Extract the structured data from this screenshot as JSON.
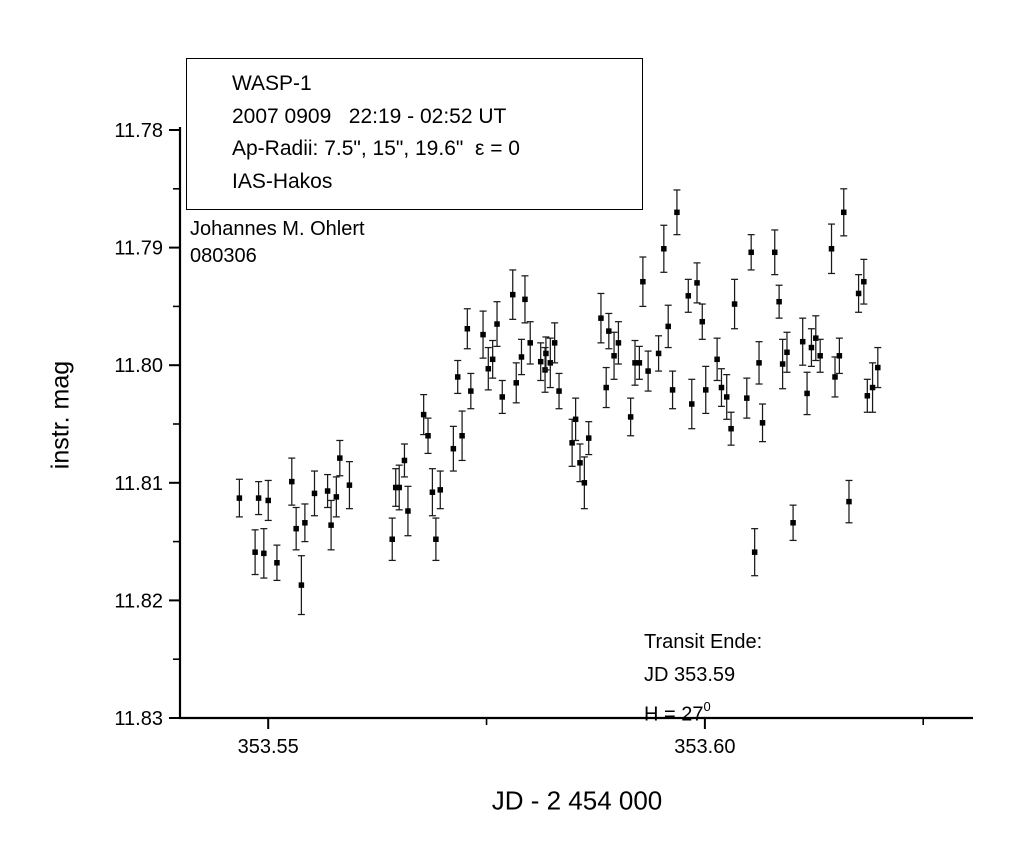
{
  "colors": {
    "foreground": "#000000",
    "background": "#ffffff",
    "error_bar": "#1a1a1a",
    "marker": "#000000"
  },
  "legend_box": {
    "lines": [
      "WASP-1",
      "2007 0909   22:19 - 02:52 UT",
      "Ap-Radii: 7.5\", 15\", 19.6\"  ε = 0",
      "IAS-Hakos"
    ]
  },
  "credit": {
    "line1": "Johannes M. Ohlert",
    "line2": "080306"
  },
  "annotation": {
    "line1": "Transit Ende:",
    "line2": "JD 353.59",
    "h_main": "H = 27",
    "h_sup": "0"
  },
  "chart_data": {
    "type": "scatter",
    "title": "",
    "xlabel": "JD - 2 454 000",
    "ylabel": "instr. mag",
    "xlim": [
      353.5399,
      353.6307
    ],
    "ylim": [
      11.78,
      11.83
    ],
    "y_axis_inverted_magnitude": true,
    "grid": false,
    "legend_position": "top-left-box",
    "marker_style": "filled-black-square-with-vertical-error-bars",
    "x_ticks_major": [
      {
        "value": 353.55,
        "label": "353.55"
      },
      {
        "value": 353.6,
        "label": "353.60"
      }
    ],
    "x_ticks_minor": [
      353.575,
      353.625
    ],
    "y_ticks_major": [
      {
        "value": 11.78,
        "label": "11.78"
      },
      {
        "value": 11.79,
        "label": "11.79"
      },
      {
        "value": 11.8,
        "label": "11.80"
      },
      {
        "value": 11.81,
        "label": "11.81"
      },
      {
        "value": 11.82,
        "label": "11.82"
      },
      {
        "value": 11.83,
        "label": "11.83"
      }
    ],
    "y_ticks_minor": [
      11.785,
      11.795,
      11.805,
      11.815,
      11.825
    ],
    "points_format": [
      "jd_minus_2454000",
      "instr_mag",
      "mag_error"
    ],
    "points": [
      [
        353.5467,
        11.8113,
        0.0016
      ],
      [
        353.5485,
        11.8159,
        0.0019
      ],
      [
        353.5489,
        11.8113,
        0.0014
      ],
      [
        353.5495,
        11.816,
        0.0021
      ],
      [
        353.55,
        11.8115,
        0.0017
      ],
      [
        353.551,
        11.8168,
        0.0015
      ],
      [
        353.5527,
        11.8099,
        0.002
      ],
      [
        353.5532,
        11.8139,
        0.0018
      ],
      [
        353.5538,
        11.8187,
        0.0025
      ],
      [
        353.5542,
        11.8134,
        0.0016
      ],
      [
        353.5553,
        11.8109,
        0.0019
      ],
      [
        353.5568,
        11.8107,
        0.0014
      ],
      [
        353.5572,
        11.8136,
        0.0021
      ],
      [
        353.5578,
        11.8112,
        0.0017
      ],
      [
        353.5582,
        11.8079,
        0.0015
      ],
      [
        353.5593,
        11.8102,
        0.002
      ],
      [
        353.5642,
        11.8148,
        0.0018
      ],
      [
        353.5646,
        11.8104,
        0.0016
      ],
      [
        353.565,
        11.8104,
        0.0019
      ],
      [
        353.5656,
        11.8081,
        0.0014
      ],
      [
        353.566,
        11.8124,
        0.0021
      ],
      [
        353.5678,
        11.8042,
        0.0017
      ],
      [
        353.5683,
        11.806,
        0.0015
      ],
      [
        353.5688,
        11.8108,
        0.002
      ],
      [
        353.5692,
        11.8148,
        0.0018
      ],
      [
        353.5697,
        11.8106,
        0.0016
      ],
      [
        353.5712,
        11.8071,
        0.0019
      ],
      [
        353.5717,
        11.801,
        0.0014
      ],
      [
        353.5722,
        11.806,
        0.0021
      ],
      [
        353.5728,
        11.7969,
        0.0017
      ],
      [
        353.5732,
        11.8022,
        0.0015
      ],
      [
        353.5746,
        11.7974,
        0.002
      ],
      [
        353.5752,
        11.8003,
        0.0018
      ],
      [
        353.5757,
        11.7995,
        0.0016
      ],
      [
        353.5762,
        11.7965,
        0.0019
      ],
      [
        353.5768,
        11.8027,
        0.0014
      ],
      [
        353.578,
        11.794,
        0.0021
      ],
      [
        353.5784,
        11.8015,
        0.0017
      ],
      [
        353.579,
        11.7993,
        0.0015
      ],
      [
        353.5794,
        11.7944,
        0.002
      ],
      [
        353.58,
        11.7981,
        0.0018
      ],
      [
        353.5812,
        11.7997,
        0.0016
      ],
      [
        353.5817,
        11.8004,
        0.0019
      ],
      [
        353.5818,
        11.799,
        0.0014
      ],
      [
        353.5823,
        11.7998,
        0.0021
      ],
      [
        353.5828,
        11.7981,
        0.0017
      ],
      [
        353.5833,
        11.8022,
        0.0015
      ],
      [
        353.5848,
        11.8066,
        0.002
      ],
      [
        353.5852,
        11.8046,
        0.0018
      ],
      [
        353.5857,
        11.8083,
        0.0016
      ],
      [
        353.5862,
        11.81,
        0.0022
      ],
      [
        353.5867,
        11.8062,
        0.0014
      ],
      [
        353.5881,
        11.796,
        0.0021
      ],
      [
        353.5887,
        11.8019,
        0.0017
      ],
      [
        353.589,
        11.7971,
        0.0015
      ],
      [
        353.5896,
        11.7992,
        0.002
      ],
      [
        353.5901,
        11.7981,
        0.0018
      ],
      [
        353.5915,
        11.8044,
        0.0016
      ],
      [
        353.592,
        11.7998,
        0.0019
      ],
      [
        353.5925,
        11.7998,
        0.0014
      ],
      [
        353.5929,
        11.7929,
        0.0021
      ],
      [
        353.5935,
        11.8005,
        0.0017
      ],
      [
        353.5947,
        11.799,
        0.0015
      ],
      [
        353.5953,
        11.7901,
        0.002
      ],
      [
        353.5958,
        11.7967,
        0.0018
      ],
      [
        353.5963,
        11.8021,
        0.0016
      ],
      [
        353.5968,
        11.787,
        0.0019
      ],
      [
        353.5981,
        11.7941,
        0.0014
      ],
      [
        353.5985,
        11.8033,
        0.0021
      ],
      [
        353.5991,
        11.793,
        0.0017
      ],
      [
        353.5997,
        11.7963,
        0.0015
      ],
      [
        353.6001,
        11.8021,
        0.002
      ],
      [
        353.6014,
        11.7995,
        0.0018
      ],
      [
        353.6019,
        11.8019,
        0.0016
      ],
      [
        353.6025,
        11.8027,
        0.0019
      ],
      [
        353.603,
        11.8054,
        0.0014
      ],
      [
        353.6034,
        11.7948,
        0.0021
      ],
      [
        353.6048,
        11.8028,
        0.0017
      ],
      [
        353.6053,
        11.7904,
        0.0015
      ],
      [
        353.6057,
        11.8159,
        0.002
      ],
      [
        353.6062,
        11.7998,
        0.0018
      ],
      [
        353.6066,
        11.8049,
        0.0016
      ],
      [
        353.608,
        11.7904,
        0.0019
      ],
      [
        353.6085,
        11.7946,
        0.0014
      ],
      [
        353.6089,
        11.7999,
        0.0021
      ],
      [
        353.6094,
        11.7989,
        0.0017
      ],
      [
        353.6101,
        11.8134,
        0.0015
      ],
      [
        353.6112,
        11.798,
        0.002
      ],
      [
        353.6117,
        11.8024,
        0.0018
      ],
      [
        353.6122,
        11.7985,
        0.0016
      ],
      [
        353.6127,
        11.7977,
        0.0019
      ],
      [
        353.6132,
        11.7992,
        0.0014
      ],
      [
        353.6145,
        11.7901,
        0.0021
      ],
      [
        353.6149,
        11.801,
        0.0017
      ],
      [
        353.6154,
        11.7992,
        0.0015
      ],
      [
        353.6159,
        11.787,
        0.002
      ],
      [
        353.6165,
        11.8116,
        0.0018
      ],
      [
        353.6176,
        11.7939,
        0.0016
      ],
      [
        353.6182,
        11.7929,
        0.0019
      ],
      [
        353.6186,
        11.8026,
        0.0014
      ],
      [
        353.6192,
        11.8019,
        0.0021
      ],
      [
        353.6198,
        11.8002,
        0.0017
      ]
    ]
  }
}
